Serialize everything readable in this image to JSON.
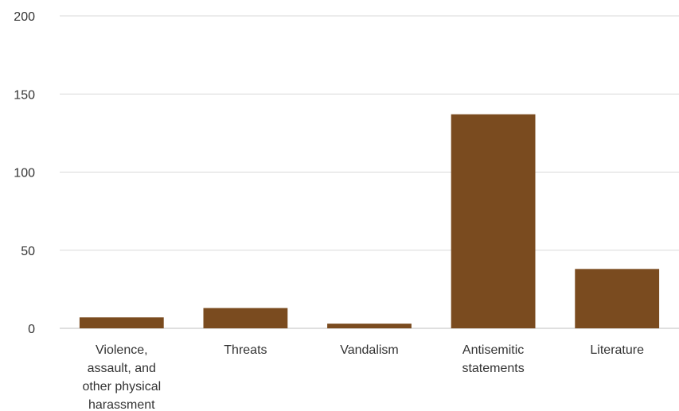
{
  "chart_data": {
    "type": "bar",
    "categories": [
      [
        "Violence,",
        "assault, and",
        "other physical",
        "harassment"
      ],
      [
        "Threats"
      ],
      [
        "Vandalism"
      ],
      [
        "Antisemitic",
        "statements"
      ],
      [
        "Literature"
      ]
    ],
    "values": [
      7,
      13,
      3,
      137,
      38
    ],
    "yticks": [
      "0",
      "50",
      "100",
      "150",
      "200"
    ],
    "ylim": [
      0,
      200
    ],
    "bar_color": "#7a4b1f",
    "grid": true
  }
}
